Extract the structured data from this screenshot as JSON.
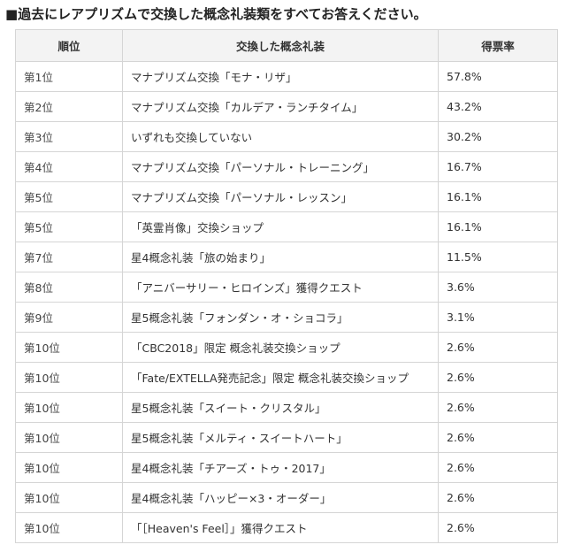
{
  "question": "■過去にレアプリズムで交換した概念礼装類をすべてお答えください。",
  "table": {
    "headers": [
      "順位",
      "交換した概念礼装",
      "得票率"
    ],
    "rows": [
      {
        "rank": "第1位",
        "item": "マナプリズム交換「モナ・リザ」",
        "rate": "57.8%"
      },
      {
        "rank": "第2位",
        "item": "マナプリズム交換「カルデア・ランチタイム」",
        "rate": "43.2%"
      },
      {
        "rank": "第3位",
        "item": "いずれも交換していない",
        "rate": "30.2%"
      },
      {
        "rank": "第4位",
        "item": "マナプリズム交換「パーソナル・トレーニング」",
        "rate": "16.7%"
      },
      {
        "rank": "第5位",
        "item": "マナプリズム交換「パーソナル・レッスン」",
        "rate": "16.1%"
      },
      {
        "rank": "第5位",
        "item": "「英霊肖像」交換ショップ",
        "rate": "16.1%"
      },
      {
        "rank": "第7位",
        "item": "星4概念礼装「旅の始まり」",
        "rate": "11.5%"
      },
      {
        "rank": "第8位",
        "item": "「アニバーサリー・ヒロインズ」獲得クエスト",
        "rate": "3.6%"
      },
      {
        "rank": "第9位",
        "item": "星5概念礼装「フォンダン・オ・ショコラ」",
        "rate": "3.1%"
      },
      {
        "rank": "第10位",
        "item": "「CBC2018」限定 概念礼装交換ショップ",
        "rate": "2.6%"
      },
      {
        "rank": "第10位",
        "item": "「Fate/EXTELLA発売記念」限定 概念礼装交換ショップ",
        "rate": "2.6%"
      },
      {
        "rank": "第10位",
        "item": "星5概念礼装「スイート・クリスタル」",
        "rate": "2.6%"
      },
      {
        "rank": "第10位",
        "item": "星5概念礼装「メルティ・スイートハート」",
        "rate": "2.6%"
      },
      {
        "rank": "第10位",
        "item": "星4概念礼装「チアーズ・トゥ・2017」",
        "rate": "2.6%"
      },
      {
        "rank": "第10位",
        "item": "星4概念礼装「ハッピー×3・オーダー」",
        "rate": "2.6%"
      },
      {
        "rank": "第10位",
        "item": "「［Heaven's Feel］」獲得クエスト",
        "rate": "2.6%"
      }
    ]
  }
}
